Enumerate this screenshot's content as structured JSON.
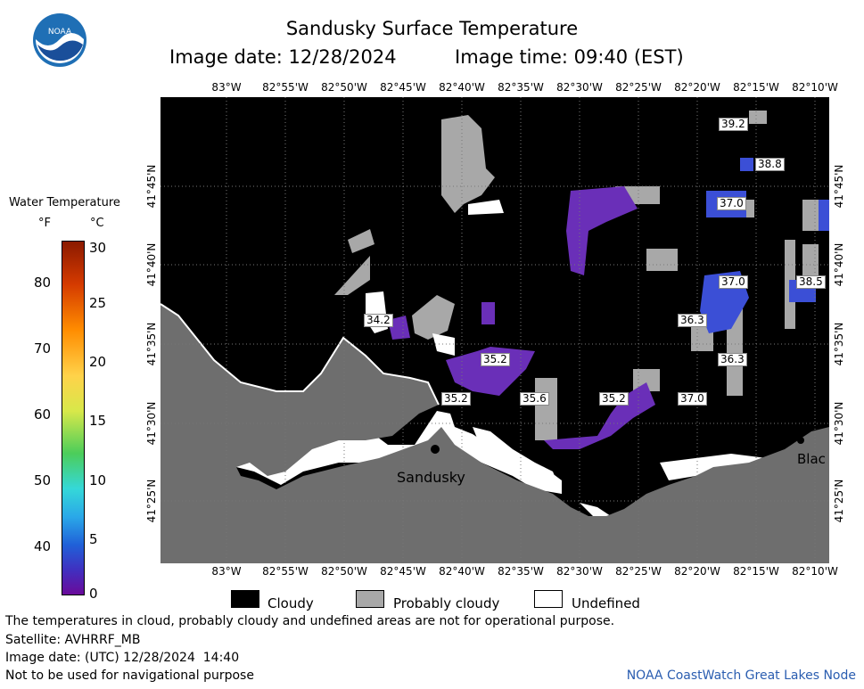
{
  "header": {
    "title": "Sandusky Surface Temperature",
    "image_date": "Image date: 12/28/2024",
    "image_time": "Image time: 09:40 (EST)"
  },
  "logo": {
    "text": "NOAA"
  },
  "longitudes": [
    "83°W",
    "82°55'W",
    "82°50'W",
    "82°45'W",
    "82°40'W",
    "82°35'W",
    "82°30'W",
    "82°25'W",
    "82°20'W",
    "82°15'W",
    "82°10'W"
  ],
  "latitudes": [
    "41°45'N",
    "41°40'N",
    "41°35'N",
    "41°30'N",
    "41°25'N"
  ],
  "temperature_labels": [
    "39.2",
    "38.8",
    "37.0",
    "37.0",
    "38.5",
    "34.2",
    "36.3",
    "36.3",
    "35.2",
    "35.2",
    "35.6",
    "35.2",
    "37.0"
  ],
  "places": {
    "city": "Sandusky",
    "cut_label": "Blac"
  },
  "scale": {
    "title": "Water Temperature",
    "unit_f": "°F",
    "unit_c": "°C",
    "f_ticks": [
      "80",
      "70",
      "60",
      "50",
      "40"
    ],
    "c_ticks": [
      "30",
      "25",
      "20",
      "15",
      "10",
      "5",
      "0"
    ]
  },
  "legend": {
    "cloudy": "Cloudy",
    "probably_cloudy": "Probably cloudy",
    "undefined": "Undefined"
  },
  "footer": {
    "note": "The temperatures in cloud, probably cloudy and undefined areas are not for operational purpose.",
    "satellite": "Satellite: AVHRRF_MB",
    "utc_date": "Image date: (UTC) 12/28/2024  14:40",
    "nav": "Not to be used for navigational purpose",
    "credit": "NOAA CoastWatch Great Lakes Node"
  },
  "colors": {
    "cloud": "#000000",
    "probably_cloudy": "#a8a8a8",
    "land": "#6e6e6e",
    "undefined": "#ffffff",
    "purple": "#6a2fb8",
    "blue": "#3b4fd6",
    "credit": "#2a5db0"
  }
}
